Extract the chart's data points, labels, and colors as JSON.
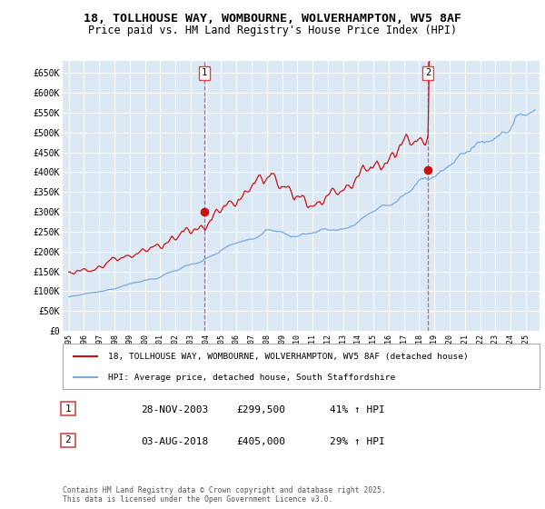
{
  "title_line1": "18, TOLLHOUSE WAY, WOMBOURNE, WOLVERHAMPTON, WV5 8AF",
  "title_line2": "Price paid vs. HM Land Registry's House Price Index (HPI)",
  "ylim": [
    0,
    680000
  ],
  "yticks": [
    0,
    50000,
    100000,
    150000,
    200000,
    250000,
    300000,
    350000,
    400000,
    450000,
    500000,
    550000,
    600000,
    650000
  ],
  "ytick_labels": [
    "£0",
    "£50K",
    "£100K",
    "£150K",
    "£200K",
    "£250K",
    "£300K",
    "£350K",
    "£400K",
    "£450K",
    "£500K",
    "£550K",
    "£600K",
    "£650K"
  ],
  "hpi_color": "#7aaadd",
  "price_color": "#cc1111",
  "marker1_date": 2003.9,
  "marker1_price": 299500,
  "marker2_date": 2018.58,
  "marker2_price": 405000,
  "legend_price_label": "18, TOLLHOUSE WAY, WOMBOURNE, WOLVERHAMPTON, WV5 8AF (detached house)",
  "legend_hpi_label": "HPI: Average price, detached house, South Staffordshire",
  "table_row1": [
    "1",
    "28-NOV-2003",
    "£299,500",
    "41% ↑ HPI"
  ],
  "table_row2": [
    "2",
    "03-AUG-2018",
    "£405,000",
    "29% ↑ HPI"
  ],
  "footer": "Contains HM Land Registry data © Crown copyright and database right 2025.\nThis data is licensed under the Open Government Licence v3.0.",
  "fig_bg": "#ffffff",
  "plot_bg": "#dde8f5",
  "grid_color": "#ffffff",
  "vline_color": "#dd4444"
}
